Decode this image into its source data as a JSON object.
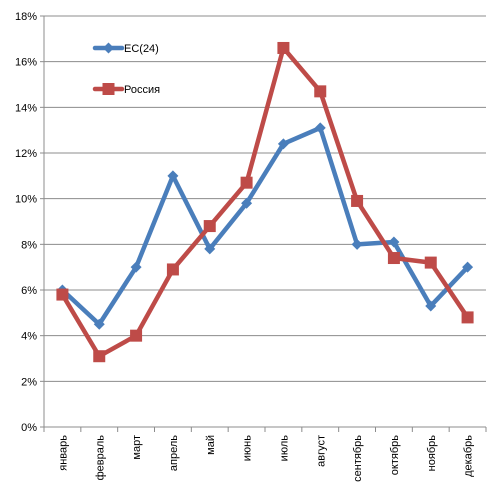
{
  "chart_data": {
    "type": "line",
    "categories": [
      "январь",
      "февраль",
      "март",
      "апрель",
      "май",
      "июнь",
      "июль",
      "август",
      "сентябрь",
      "октябрь",
      "ноябрь",
      "декабрь"
    ],
    "series": [
      {
        "name": "ЕС(24)",
        "color": "#4a7ebb",
        "marker": "diamond",
        "values": [
          6.0,
          4.5,
          7.0,
          11.0,
          7.8,
          9.8,
          12.4,
          13.1,
          8.0,
          8.1,
          5.3,
          7.0
        ]
      },
      {
        "name": "Россия",
        "color": "#be4b48",
        "marker": "square",
        "values": [
          5.8,
          3.1,
          4.0,
          6.9,
          8.8,
          10.7,
          16.6,
          14.7,
          9.9,
          7.4,
          7.2,
          4.8
        ]
      }
    ],
    "y_ticks": [
      "0%",
      "2%",
      "4%",
      "6%",
      "8%",
      "10%",
      "12%",
      "14%",
      "16%",
      "18%"
    ],
    "ylim": [
      0,
      18
    ],
    "grid": true,
    "legend": "top-left"
  }
}
